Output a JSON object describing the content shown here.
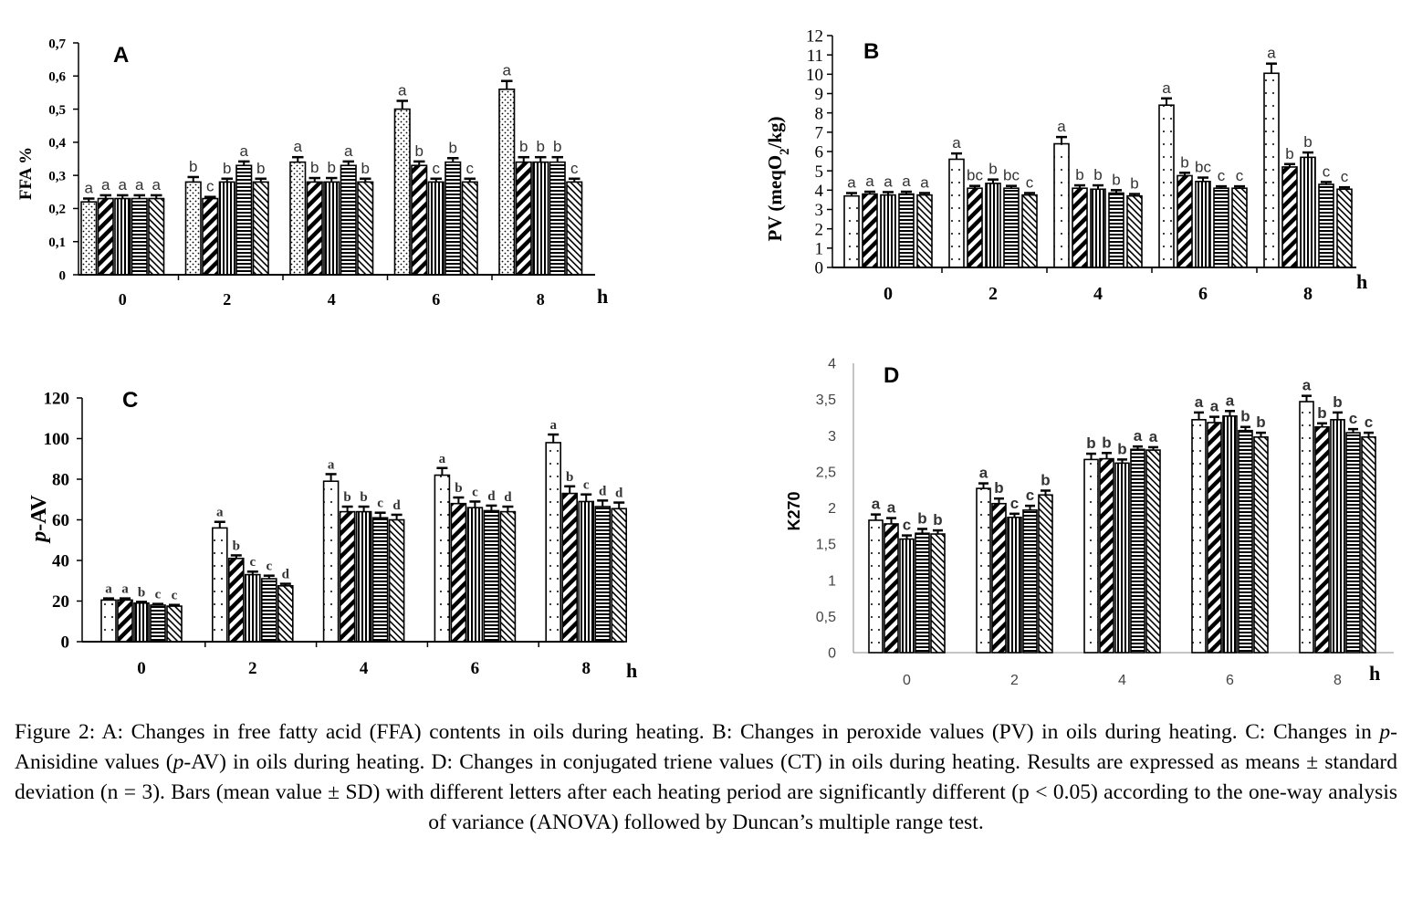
{
  "patterns": [
    "dots",
    "diag-thick",
    "vlines",
    "hlines",
    "diag-thin"
  ],
  "chart_data": [
    {
      "panel": "A",
      "type": "bar",
      "ylabel": "FFA %",
      "xunit": "h",
      "ylim": [
        0,
        0.7
      ],
      "yticks": [
        "0",
        "0,1",
        "0,2",
        "0,3",
        "0,4",
        "0,5",
        "0,6",
        "0,7"
      ],
      "categories": [
        "0",
        "2",
        "4",
        "6",
        "8"
      ],
      "values": [
        [
          0.22,
          0.23,
          0.23,
          0.23,
          0.23
        ],
        [
          0.28,
          0.23,
          0.28,
          0.33,
          0.28
        ],
        [
          0.34,
          0.28,
          0.28,
          0.33,
          0.28
        ],
        [
          0.5,
          0.33,
          0.28,
          0.34,
          0.28
        ],
        [
          0.56,
          0.34,
          0.34,
          0.34,
          0.28
        ]
      ],
      "errors": [
        [
          0.01,
          0.01,
          0.01,
          0.01,
          0.01
        ],
        [
          0.015,
          0.005,
          0.01,
          0.012,
          0.01
        ],
        [
          0.015,
          0.012,
          0.012,
          0.012,
          0.01
        ],
        [
          0.025,
          0.012,
          0.01,
          0.012,
          0.01
        ],
        [
          0.025,
          0.015,
          0.015,
          0.015,
          0.01
        ]
      ],
      "letters": [
        [
          "a",
          "a",
          "a",
          "a",
          "a"
        ],
        [
          "b",
          "c",
          "b",
          "a",
          "b"
        ],
        [
          "a",
          "b",
          "b",
          "a",
          "b"
        ],
        [
          "a",
          "b",
          "c",
          "b",
          "c"
        ],
        [
          "a",
          "b",
          "b",
          "b",
          "c"
        ]
      ]
    },
    {
      "panel": "B",
      "type": "bar",
      "ylabel": "PV (meqO2/kg)",
      "xunit": "h",
      "ylim": [
        0,
        12
      ],
      "yticks": [
        "0",
        "1",
        "2",
        "3",
        "4",
        "5",
        "6",
        "7",
        "8",
        "9",
        "10",
        "11",
        "12"
      ],
      "categories": [
        "0",
        "2",
        "4",
        "6",
        "8"
      ],
      "values": [
        [
          3.7,
          3.8,
          3.75,
          3.8,
          3.75
        ],
        [
          5.6,
          4.1,
          4.35,
          4.1,
          3.75
        ],
        [
          6.4,
          4.1,
          4.05,
          3.85,
          3.7
        ],
        [
          8.4,
          4.75,
          4.45,
          4.1,
          4.1
        ],
        [
          10.05,
          5.2,
          5.7,
          4.3,
          4.05
        ]
      ],
      "errors": [
        [
          0.15,
          0.12,
          0.15,
          0.12,
          0.1
        ],
        [
          0.3,
          0.12,
          0.2,
          0.12,
          0.1
        ],
        [
          0.35,
          0.15,
          0.2,
          0.15,
          0.1
        ],
        [
          0.35,
          0.15,
          0.2,
          0.1,
          0.1
        ],
        [
          0.5,
          0.15,
          0.25,
          0.12,
          0.1
        ]
      ],
      "letters": [
        [
          "a",
          "a",
          "a",
          "a",
          "a"
        ],
        [
          "a",
          "bc",
          "b",
          "bc",
          "c"
        ],
        [
          "a",
          "b",
          "b",
          "b",
          "b"
        ],
        [
          "a",
          "b",
          "bc",
          "c",
          "c"
        ],
        [
          "a",
          "b",
          "b",
          "c",
          "c"
        ]
      ]
    },
    {
      "panel": "C",
      "type": "bar",
      "ylabel": "p-AV",
      "xunit": "h",
      "ylim": [
        0,
        120
      ],
      "yticks": [
        "0",
        "20",
        "40",
        "60",
        "80",
        "100",
        "120"
      ],
      "categories": [
        "0",
        "2",
        "4",
        "6",
        "8"
      ],
      "values": [
        [
          20.5,
          20.5,
          19,
          18,
          17.5
        ],
        [
          56,
          41,
          33,
          31,
          27.5
        ],
        [
          79,
          64,
          64,
          61,
          60
        ],
        [
          82,
          68,
          66,
          64.5,
          64
        ],
        [
          98,
          73,
          69,
          66.5,
          65.5
        ]
      ],
      "errors": [
        [
          0.8,
          0.8,
          0.6,
          0.6,
          0.6
        ],
        [
          3,
          1.5,
          1.5,
          1.5,
          1
        ],
        [
          3.5,
          2.5,
          2.5,
          2.5,
          2.5
        ],
        [
          3.5,
          3,
          3,
          2.5,
          2.5
        ],
        [
          4,
          3.5,
          3.5,
          3,
          3
        ]
      ],
      "letters": [
        [
          "a",
          "a",
          "b",
          "c",
          "c"
        ],
        [
          "a",
          "b",
          "c",
          "c",
          "d"
        ],
        [
          "a",
          "b",
          "b",
          "c",
          "d"
        ],
        [
          "a",
          "b",
          "c",
          "d",
          "d"
        ],
        [
          "a",
          "b",
          "c",
          "d",
          "d"
        ]
      ]
    },
    {
      "panel": "D",
      "type": "bar",
      "ylabel": "K270",
      "xunit": "h",
      "ylim": [
        0,
        4
      ],
      "yticks": [
        "0",
        "0,5",
        "1",
        "1,5",
        "2",
        "2,5",
        "3",
        "3,5",
        "4"
      ],
      "categories": [
        "0",
        "2",
        "4",
        "6",
        "8"
      ],
      "values": [
        [
          1.83,
          1.78,
          1.57,
          1.65,
          1.64
        ],
        [
          2.27,
          2.06,
          1.87,
          1.97,
          2.18
        ],
        [
          2.67,
          2.68,
          2.62,
          2.81,
          2.8
        ],
        [
          3.22,
          3.18,
          3.27,
          3.07,
          2.98
        ],
        [
          3.47,
          3.12,
          3.22,
          3.04,
          2.98
        ]
      ],
      "errors": [
        [
          0.08,
          0.08,
          0.05,
          0.06,
          0.05
        ],
        [
          0.07,
          0.07,
          0.05,
          0.06,
          0.06
        ],
        [
          0.08,
          0.08,
          0.05,
          0.04,
          0.04
        ],
        [
          0.1,
          0.08,
          0.07,
          0.05,
          0.06
        ],
        [
          0.08,
          0.05,
          0.1,
          0.05,
          0.06
        ]
      ],
      "letters": [
        [
          "a",
          "a",
          "c",
          "b",
          "b"
        ],
        [
          "a",
          "b",
          "c",
          "c",
          "b"
        ],
        [
          "b",
          "b",
          "b",
          "a",
          "a"
        ],
        [
          "a",
          "a",
          "a",
          "b",
          "b"
        ],
        [
          "a",
          "b",
          "b",
          "c",
          "c"
        ]
      ]
    }
  ],
  "caption": {
    "text_1": "Figure 2: A: Changes in free fatty acid (FFA) contents in oils during heating. B: Changes in peroxide values (PV) in oils during heating. C: Changes in ",
    "italic_1": "p",
    "text_2": "-Anisidine values (",
    "italic_2": "p",
    "text_3": "-AV) in oils during heating. D: Changes in conjugated triene values (CT)  in oils during heating. Results are expressed as means ± standard deviation (n = 3). Bars (mean value ± SD) with different letters after each heating period are significantly different (p < 0.05) according to the one-way analysis of variance (ANOVA) followed by Duncan’s multiple range test."
  }
}
